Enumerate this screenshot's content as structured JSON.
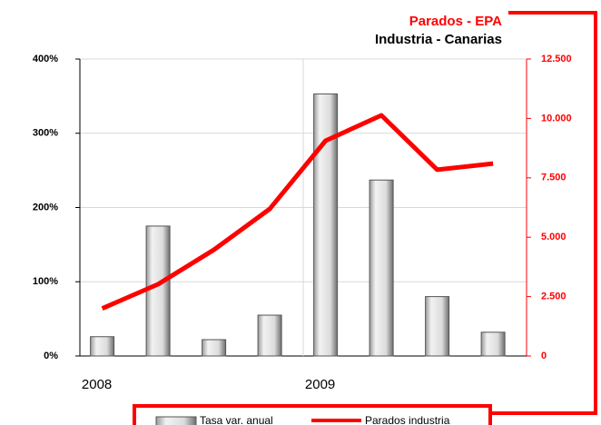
{
  "chart_data": {
    "type": "bar_line",
    "title": "Parados - EPA",
    "subtitle": "Industria - Canarias",
    "categories": [
      "2008",
      null,
      null,
      null,
      "2009",
      null,
      null,
      null
    ],
    "series": [
      {
        "name": "Tasa var. anual",
        "color": "#d9d9d9",
        "type": "bar",
        "values": [
          26,
          175,
          22,
          55,
          353,
          237,
          80,
          32
        ]
      },
      {
        "name": "Parados industria",
        "color": "#ff0000",
        "type": "line",
        "axis": "y2",
        "values": [
          2000,
          3020,
          4470,
          6190,
          9060,
          10130,
          7840,
          8100
        ]
      }
    ],
    "ylim": [
      0,
      400
    ],
    "yticks": [
      {
        "value": 0,
        "label": "0%"
      },
      {
        "value": 100,
        "label": "100%"
      },
      {
        "value": 200,
        "label": "200%"
      },
      {
        "value": 300,
        "label": "300%"
      },
      {
        "value": 400,
        "label": "400%"
      }
    ],
    "y2lim": [
      0,
      12500
    ],
    "y2ticks": [
      0,
      {
        "value": 2500,
        "label": "2.500"
      },
      {
        "value": 5000,
        "label": "5.000"
      },
      {
        "value": 7500,
        "label": "7.500"
      },
      {
        "value": 10000,
        "label": "10.000"
      },
      {
        "value": 12500,
        "label": "12.500"
      }
    ],
    "grid": true,
    "legend": "bottom"
  }
}
